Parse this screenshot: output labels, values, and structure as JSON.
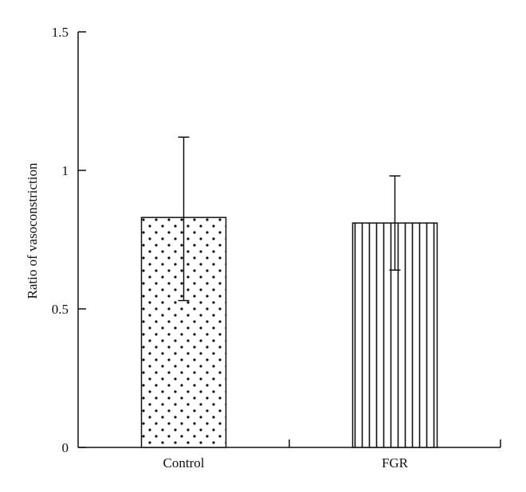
{
  "chart_data": {
    "type": "bar",
    "ylabel": "Ratio of vasoconstriction",
    "xlabel": "",
    "ylim": [
      0,
      1.5
    ],
    "yticks": [
      0,
      0.5,
      1,
      1.5
    ],
    "ytick_labels": [
      "0",
      "0.5",
      "1",
      "1.5"
    ],
    "categories": [
      "Control",
      "FGR"
    ],
    "values": [
      0.83,
      0.81
    ],
    "error_lower": [
      0.53,
      0.64
    ],
    "error_upper": [
      1.12,
      0.98
    ],
    "patterns": [
      "dots",
      "vertical-stripes"
    ],
    "grid": false,
    "legend": "none",
    "colors": {
      "ink": "#111111",
      "bar_fill": "#ffffff"
    }
  }
}
